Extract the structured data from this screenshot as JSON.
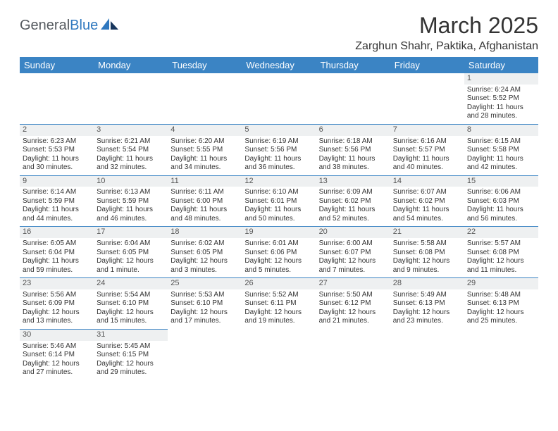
{
  "logo": {
    "text1": "General",
    "text2": "Blue"
  },
  "title": "March 2025",
  "location": "Zarghun Shahr, Paktika, Afghanistan",
  "colors": {
    "header_bg": "#3b84c4",
    "header_text": "#ffffff",
    "border": "#3b84c4",
    "daynum_bg": "#eef0f1",
    "logo_gray": "#555a5f",
    "logo_blue": "#2f78bf"
  },
  "typography": {
    "title_fontsize": 32,
    "location_fontsize": 16,
    "header_fontsize": 13,
    "cell_fontsize": 10
  },
  "weekdays": [
    "Sunday",
    "Monday",
    "Tuesday",
    "Wednesday",
    "Thursday",
    "Friday",
    "Saturday"
  ],
  "weeks": [
    [
      null,
      null,
      null,
      null,
      null,
      null,
      {
        "n": "1",
        "sr": "Sunrise: 6:24 AM",
        "ss": "Sunset: 5:52 PM",
        "d1": "Daylight: 11 hours",
        "d2": "and 28 minutes."
      }
    ],
    [
      {
        "n": "2",
        "sr": "Sunrise: 6:23 AM",
        "ss": "Sunset: 5:53 PM",
        "d1": "Daylight: 11 hours",
        "d2": "and 30 minutes."
      },
      {
        "n": "3",
        "sr": "Sunrise: 6:21 AM",
        "ss": "Sunset: 5:54 PM",
        "d1": "Daylight: 11 hours",
        "d2": "and 32 minutes."
      },
      {
        "n": "4",
        "sr": "Sunrise: 6:20 AM",
        "ss": "Sunset: 5:55 PM",
        "d1": "Daylight: 11 hours",
        "d2": "and 34 minutes."
      },
      {
        "n": "5",
        "sr": "Sunrise: 6:19 AM",
        "ss": "Sunset: 5:56 PM",
        "d1": "Daylight: 11 hours",
        "d2": "and 36 minutes."
      },
      {
        "n": "6",
        "sr": "Sunrise: 6:18 AM",
        "ss": "Sunset: 5:56 PM",
        "d1": "Daylight: 11 hours",
        "d2": "and 38 minutes."
      },
      {
        "n": "7",
        "sr": "Sunrise: 6:16 AM",
        "ss": "Sunset: 5:57 PM",
        "d1": "Daylight: 11 hours",
        "d2": "and 40 minutes."
      },
      {
        "n": "8",
        "sr": "Sunrise: 6:15 AM",
        "ss": "Sunset: 5:58 PM",
        "d1": "Daylight: 11 hours",
        "d2": "and 42 minutes."
      }
    ],
    [
      {
        "n": "9",
        "sr": "Sunrise: 6:14 AM",
        "ss": "Sunset: 5:59 PM",
        "d1": "Daylight: 11 hours",
        "d2": "and 44 minutes."
      },
      {
        "n": "10",
        "sr": "Sunrise: 6:13 AM",
        "ss": "Sunset: 5:59 PM",
        "d1": "Daylight: 11 hours",
        "d2": "and 46 minutes."
      },
      {
        "n": "11",
        "sr": "Sunrise: 6:11 AM",
        "ss": "Sunset: 6:00 PM",
        "d1": "Daylight: 11 hours",
        "d2": "and 48 minutes."
      },
      {
        "n": "12",
        "sr": "Sunrise: 6:10 AM",
        "ss": "Sunset: 6:01 PM",
        "d1": "Daylight: 11 hours",
        "d2": "and 50 minutes."
      },
      {
        "n": "13",
        "sr": "Sunrise: 6:09 AM",
        "ss": "Sunset: 6:02 PM",
        "d1": "Daylight: 11 hours",
        "d2": "and 52 minutes."
      },
      {
        "n": "14",
        "sr": "Sunrise: 6:07 AM",
        "ss": "Sunset: 6:02 PM",
        "d1": "Daylight: 11 hours",
        "d2": "and 54 minutes."
      },
      {
        "n": "15",
        "sr": "Sunrise: 6:06 AM",
        "ss": "Sunset: 6:03 PM",
        "d1": "Daylight: 11 hours",
        "d2": "and 56 minutes."
      }
    ],
    [
      {
        "n": "16",
        "sr": "Sunrise: 6:05 AM",
        "ss": "Sunset: 6:04 PM",
        "d1": "Daylight: 11 hours",
        "d2": "and 59 minutes."
      },
      {
        "n": "17",
        "sr": "Sunrise: 6:04 AM",
        "ss": "Sunset: 6:05 PM",
        "d1": "Daylight: 12 hours",
        "d2": "and 1 minute."
      },
      {
        "n": "18",
        "sr": "Sunrise: 6:02 AM",
        "ss": "Sunset: 6:05 PM",
        "d1": "Daylight: 12 hours",
        "d2": "and 3 minutes."
      },
      {
        "n": "19",
        "sr": "Sunrise: 6:01 AM",
        "ss": "Sunset: 6:06 PM",
        "d1": "Daylight: 12 hours",
        "d2": "and 5 minutes."
      },
      {
        "n": "20",
        "sr": "Sunrise: 6:00 AM",
        "ss": "Sunset: 6:07 PM",
        "d1": "Daylight: 12 hours",
        "d2": "and 7 minutes."
      },
      {
        "n": "21",
        "sr": "Sunrise: 5:58 AM",
        "ss": "Sunset: 6:08 PM",
        "d1": "Daylight: 12 hours",
        "d2": "and 9 minutes."
      },
      {
        "n": "22",
        "sr": "Sunrise: 5:57 AM",
        "ss": "Sunset: 6:08 PM",
        "d1": "Daylight: 12 hours",
        "d2": "and 11 minutes."
      }
    ],
    [
      {
        "n": "23",
        "sr": "Sunrise: 5:56 AM",
        "ss": "Sunset: 6:09 PM",
        "d1": "Daylight: 12 hours",
        "d2": "and 13 minutes."
      },
      {
        "n": "24",
        "sr": "Sunrise: 5:54 AM",
        "ss": "Sunset: 6:10 PM",
        "d1": "Daylight: 12 hours",
        "d2": "and 15 minutes."
      },
      {
        "n": "25",
        "sr": "Sunrise: 5:53 AM",
        "ss": "Sunset: 6:10 PM",
        "d1": "Daylight: 12 hours",
        "d2": "and 17 minutes."
      },
      {
        "n": "26",
        "sr": "Sunrise: 5:52 AM",
        "ss": "Sunset: 6:11 PM",
        "d1": "Daylight: 12 hours",
        "d2": "and 19 minutes."
      },
      {
        "n": "27",
        "sr": "Sunrise: 5:50 AM",
        "ss": "Sunset: 6:12 PM",
        "d1": "Daylight: 12 hours",
        "d2": "and 21 minutes."
      },
      {
        "n": "28",
        "sr": "Sunrise: 5:49 AM",
        "ss": "Sunset: 6:13 PM",
        "d1": "Daylight: 12 hours",
        "d2": "and 23 minutes."
      },
      {
        "n": "29",
        "sr": "Sunrise: 5:48 AM",
        "ss": "Sunset: 6:13 PM",
        "d1": "Daylight: 12 hours",
        "d2": "and 25 minutes."
      }
    ],
    [
      {
        "n": "30",
        "sr": "Sunrise: 5:46 AM",
        "ss": "Sunset: 6:14 PM",
        "d1": "Daylight: 12 hours",
        "d2": "and 27 minutes."
      },
      {
        "n": "31",
        "sr": "Sunrise: 5:45 AM",
        "ss": "Sunset: 6:15 PM",
        "d1": "Daylight: 12 hours",
        "d2": "and 29 minutes."
      },
      null,
      null,
      null,
      null,
      null
    ]
  ]
}
